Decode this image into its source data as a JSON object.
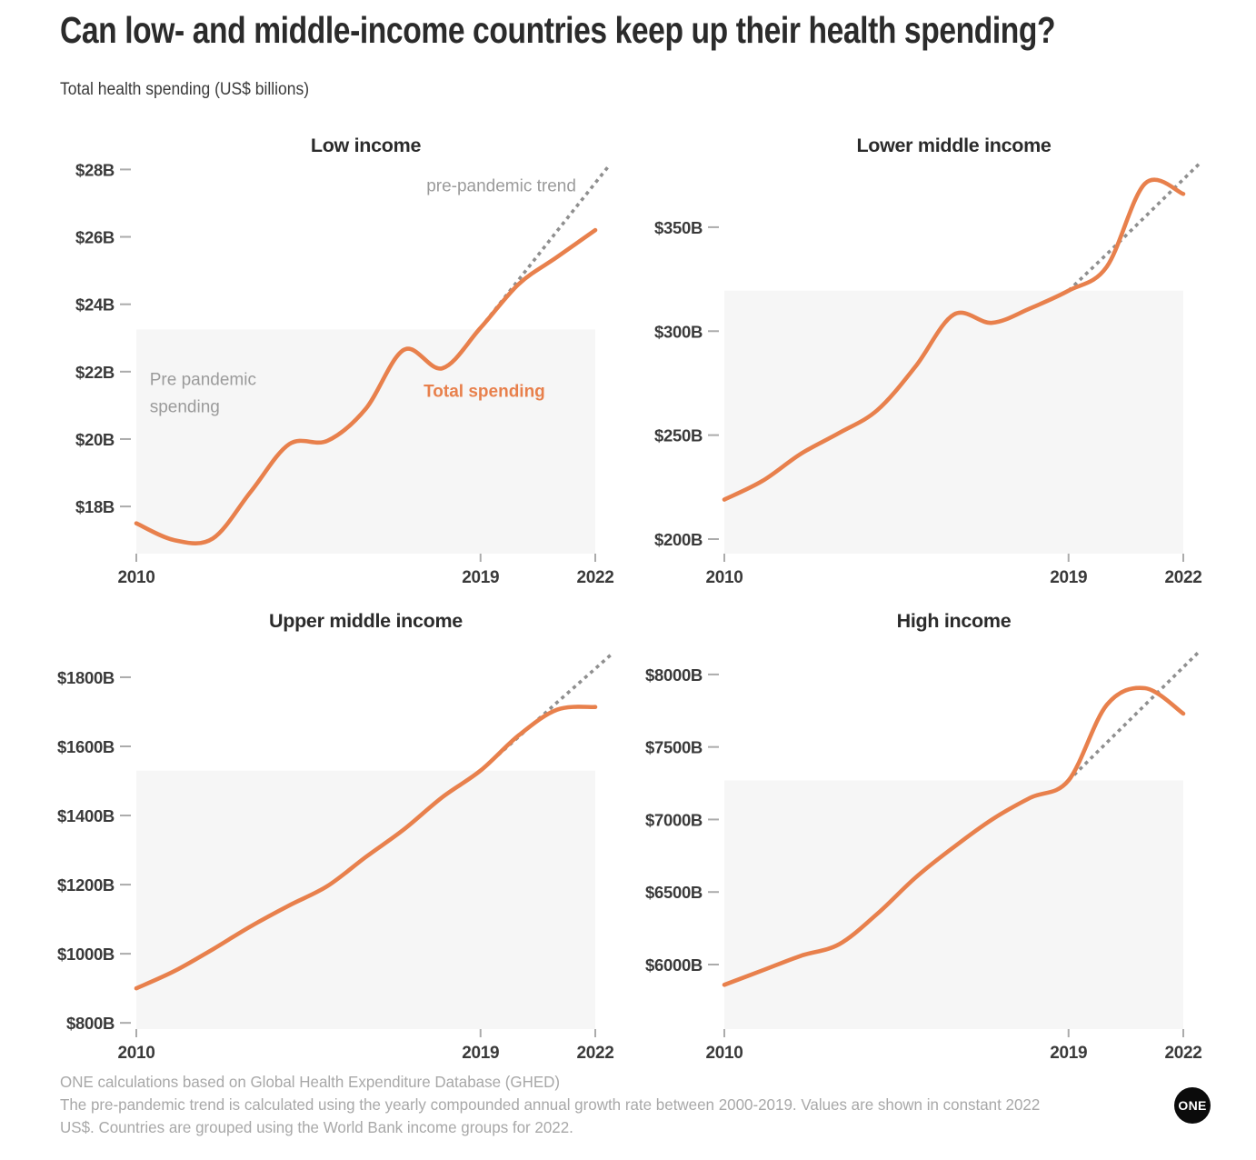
{
  "header": {
    "title": "Can low- and middle-income countries keep up their health spending?",
    "subtitle": "Total health spending (US$ billions)"
  },
  "colors": {
    "spending": "#E8804C",
    "trend": "#8F8F8F",
    "shade": "#F6F6F6",
    "axis_text": "#3A3A3A",
    "tick": "#ABABAB",
    "chart_title": "#2B2B2B",
    "annotation_gray": "#9B9B9B",
    "footer_text": "#A8A8A8",
    "logo_bg": "#0B0B0B"
  },
  "chart_data": [
    {
      "type": "line",
      "title": "Low income",
      "x": [
        2010,
        2011,
        2012,
        2013,
        2014,
        2015,
        2016,
        2017,
        2018,
        2019,
        2020,
        2021,
        2022
      ],
      "xticks": [
        2010,
        2019,
        2022
      ],
      "yticks": [
        18,
        20,
        22,
        24,
        26,
        28
      ],
      "ytick_labels": [
        "$18B",
        "$20B",
        "$22B",
        "$24B",
        "$26B",
        "$28B"
      ],
      "ylim": [
        16.6,
        28.2
      ],
      "series": [
        {
          "name": "Total spending",
          "values": [
            17.5,
            17.0,
            17.05,
            18.45,
            19.85,
            19.95,
            20.9,
            22.65,
            22.1,
            23.3,
            24.6,
            25.4,
            26.2
          ]
        },
        {
          "name": "pre-pandemic trend",
          "x": [
            2019,
            2020,
            2021,
            2022
          ],
          "values": [
            23.3,
            24.73,
            26.17,
            27.6
          ],
          "style": "dashed"
        }
      ],
      "shade": {
        "x": [
          2010,
          2022
        ],
        "y_top": 23.25,
        "note": "Pre pandemic spending"
      },
      "annotations": [
        {
          "text": "pre-pandemic trend",
          "year": 2021.5,
          "value": 27.35,
          "anchor": "end",
          "color": "gray",
          "bold": false
        },
        {
          "text": "Pre pandemic",
          "year": 2010.35,
          "value": 21.6,
          "anchor": "start",
          "color": "gray",
          "bold": false
        },
        {
          "text": "spending",
          "year": 2010.35,
          "value": 20.8,
          "anchor": "start",
          "color": "gray",
          "bold": false
        },
        {
          "text": "Total spending",
          "year": 2019.1,
          "value": 21.25,
          "anchor": "middle",
          "color": "orange",
          "bold": true
        }
      ]
    },
    {
      "type": "line",
      "title": "Lower middle income",
      "x": [
        2010,
        2011,
        2012,
        2013,
        2014,
        2015,
        2016,
        2017,
        2018,
        2019,
        2020,
        2021,
        2022
      ],
      "xticks": [
        2010,
        2019,
        2022
      ],
      "yticks": [
        200,
        250,
        300,
        350
      ],
      "ytick_labels": [
        "$200B",
        "$250B",
        "$300B",
        "$350B"
      ],
      "ylim": [
        193,
        381
      ],
      "series": [
        {
          "name": "Total spending",
          "values": [
            219,
            228,
            241,
            251,
            262,
            283,
            308,
            304,
            311,
            319.5,
            331,
            371,
            366
          ]
        },
        {
          "name": "pre-pandemic trend",
          "x": [
            2019,
            2020,
            2021,
            2022
          ],
          "values": [
            319.5,
            337,
            355,
            373
          ],
          "style": "dashed"
        }
      ],
      "shade": {
        "x": [
          2010,
          2022
        ],
        "y_top": 319.5,
        "note": "Pre pandemic spending"
      },
      "annotations": []
    },
    {
      "type": "line",
      "title": "Upper middle income",
      "x": [
        2010,
        2011,
        2012,
        2013,
        2014,
        2015,
        2016,
        2017,
        2018,
        2019,
        2020,
        2021,
        2022
      ],
      "xticks": [
        2010,
        2019,
        2022
      ],
      "yticks": [
        800,
        1000,
        1200,
        1400,
        1600,
        1800
      ],
      "ytick_labels": [
        "$800B",
        "$1000B",
        "$1200B",
        "$1400B",
        "$1600B",
        "$1800B"
      ],
      "ylim": [
        782,
        1913
      ],
      "series": [
        {
          "name": "Total spending",
          "values": [
            900,
            950,
            1013,
            1080,
            1140,
            1196,
            1280,
            1360,
            1453,
            1530,
            1632,
            1706,
            1714
          ]
        },
        {
          "name": "pre-pandemic trend",
          "x": [
            2019,
            2020,
            2021,
            2022
          ],
          "values": [
            1530,
            1628,
            1727,
            1825
          ],
          "style": "dashed"
        }
      ],
      "shade": {
        "x": [
          2010,
          2022
        ],
        "y_top": 1530,
        "note": "Pre pandemic spending"
      },
      "annotations": []
    },
    {
      "type": "line",
      "title": "High income",
      "x": [
        2010,
        2011,
        2012,
        2013,
        2014,
        2015,
        2016,
        2017,
        2018,
        2019,
        2020,
        2021,
        2022
      ],
      "xticks": [
        2010,
        2019,
        2022
      ],
      "yticks": [
        6000,
        6500,
        7000,
        7500,
        8000
      ],
      "ytick_labels": [
        "$6000B",
        "$6500B",
        "$7000B",
        "$7500B",
        "$8000B"
      ],
      "ylim": [
        5555,
        8250
      ],
      "series": [
        {
          "name": "Total spending",
          "values": [
            5860,
            5960,
            6060,
            6140,
            6350,
            6600,
            6810,
            7000,
            7150,
            7270,
            7790,
            7905,
            7730
          ]
        },
        {
          "name": "pre-pandemic trend",
          "x": [
            2019,
            2020,
            2021,
            2022
          ],
          "values": [
            7270,
            7530,
            7790,
            8050
          ],
          "style": "dashed"
        }
      ],
      "shade": {
        "x": [
          2010,
          2022
        ],
        "y_top": 7270,
        "note": "Pre pandemic spending"
      },
      "annotations": []
    }
  ],
  "footer": {
    "lines": [
      "ONE calculations based on Global Health Expenditure Database (GHED)",
      "The pre-pandemic trend is calculated using the yearly compounded annual growth rate between 2000-2019. Values are shown in constant 2022",
      "US$. Countries are grouped using the World Bank income groups for 2022."
    ],
    "logo_text": "ONE"
  }
}
